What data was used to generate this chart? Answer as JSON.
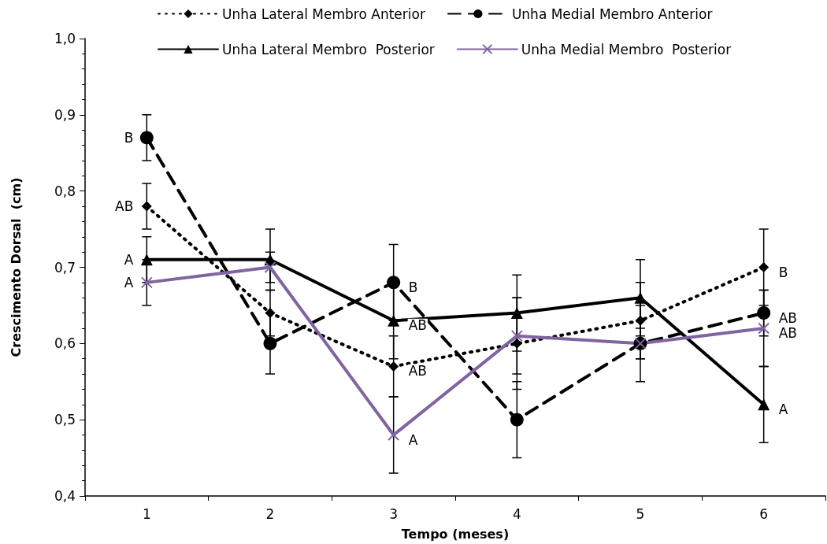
{
  "chart_data": {
    "type": "line",
    "xlabel": "Tempo (meses)",
    "ylabel": "Crescimento Dorsal  (cm)",
    "categories": [
      "1",
      "2",
      "3",
      "4",
      "5",
      "6"
    ],
    "ylim": [
      0.4,
      1.0
    ],
    "yticks": [
      {
        "value": 0.4,
        "label": "0,4"
      },
      {
        "value": 0.5,
        "label": "0,5"
      },
      {
        "value": 0.6,
        "label": "0,6"
      },
      {
        "value": 0.7,
        "label": "0,7"
      },
      {
        "value": 0.8,
        "label": "0,8"
      },
      {
        "value": 0.9,
        "label": "0,9"
      },
      {
        "value": 1.0,
        "label": "1,0"
      }
    ],
    "grid": false,
    "legend": "top",
    "series": [
      {
        "name": "Unha Lateral Membro Anterior",
        "color": "#000000",
        "marker": "diamond",
        "line_style": "dotted",
        "values": [
          0.78,
          0.64,
          0.57,
          0.6,
          0.63,
          0.7
        ],
        "errors": [
          0.03,
          0.03,
          0.04,
          0.06,
          0.05,
          0.05
        ]
      },
      {
        "name": "Unha Medial Membro Anterior",
        "color": "#000000",
        "marker": "circle",
        "line_style": "dashed",
        "values": [
          0.87,
          0.6,
          0.68,
          0.5,
          0.6,
          0.64
        ],
        "errors": [
          0.03,
          0.04,
          0.05,
          0.05,
          0.05,
          0.03
        ]
      },
      {
        "name": "Unha Lateral Membro  Posterior",
        "color": "#000000",
        "marker": "triangle",
        "line_style": "solid",
        "values": [
          0.71,
          0.71,
          0.63,
          0.64,
          0.66,
          0.52
        ],
        "errors": [
          0.03,
          0.04,
          0.05,
          0.05,
          0.05,
          0.05
        ]
      },
      {
        "name": "Unha Medial Membro  Posterior",
        "color": "#8064a2",
        "marker": "cross",
        "line_style": "solid",
        "values": [
          0.68,
          0.7,
          0.48,
          0.61,
          0.6,
          0.62
        ],
        "errors": [
          0.03,
          0.02,
          0.05,
          0.05,
          0.02,
          0.05
        ]
      }
    ],
    "annotations": [
      {
        "text": "B",
        "x": "1",
        "y": 0.87
      },
      {
        "text": "AB",
        "x": "1",
        "y": 0.78
      },
      {
        "text": "A",
        "x": "1",
        "y": 0.71
      },
      {
        "text": "A",
        "x": "1",
        "y": 0.68
      },
      {
        "text": "B",
        "x": "3",
        "y": 0.68
      },
      {
        "text": "AB",
        "x": "3",
        "y": 0.63
      },
      {
        "text": "AB",
        "x": "3",
        "y": 0.57
      },
      {
        "text": "A",
        "x": "3",
        "y": 0.48
      },
      {
        "text": "B",
        "x": "6",
        "y": 0.7
      },
      {
        "text": "AB",
        "x": "6",
        "y": 0.64
      },
      {
        "text": "AB",
        "x": "6",
        "y": 0.62
      },
      {
        "text": "A",
        "x": "6",
        "y": 0.52
      }
    ]
  }
}
